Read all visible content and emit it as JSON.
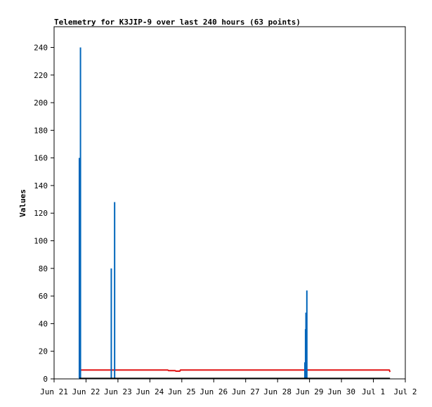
{
  "chart_data": {
    "type": "line",
    "title": "Telemetry for K3JIP-9 over last 240 hours (63 points)",
    "xlabel": "",
    "ylabel": "Values",
    "ylim": [
      0,
      255
    ],
    "xlim": [
      "2021-06-21",
      "2021-07-02"
    ],
    "y_ticks": [
      0,
      20,
      40,
      60,
      80,
      100,
      120,
      140,
      160,
      180,
      200,
      220,
      240
    ],
    "x_ticks": [
      {
        "date": "2021-06-21",
        "label": "Jun 21"
      },
      {
        "date": "2021-06-22",
        "label": "Jun 22"
      },
      {
        "date": "2021-06-23",
        "label": "Jun 23"
      },
      {
        "date": "2021-06-24",
        "label": "Jun 24"
      },
      {
        "date": "2021-06-25",
        "label": "Jun 25"
      },
      {
        "date": "2021-06-26",
        "label": "Jun 26"
      },
      {
        "date": "2021-06-27",
        "label": "Jun 27"
      },
      {
        "date": "2021-06-28",
        "label": "Jun 28"
      },
      {
        "date": "2021-06-29",
        "label": "Jun 29"
      },
      {
        "date": "2021-06-30",
        "label": "Jun 30"
      },
      {
        "date": "2021-07-01",
        "label": "Jul 1"
      },
      {
        "date": "2021-07-02",
        "label": "Jul 2"
      }
    ],
    "grid": false,
    "series": [
      {
        "color": "#e01010",
        "style": "line",
        "points": [
          [
            "2021-06-21 19:00",
            6.4
          ],
          [
            "2021-06-22 12:00",
            6.4
          ],
          [
            "2021-06-23 12:00",
            6.4
          ],
          [
            "2021-06-24 13:30",
            6.4
          ],
          [
            "2021-06-24 14:00",
            6.0
          ],
          [
            "2021-06-24 19:00",
            6.0
          ],
          [
            "2021-06-24 19:30",
            5.6
          ],
          [
            "2021-06-24 22:30",
            5.6
          ],
          [
            "2021-06-24 23:00",
            6.4
          ],
          [
            "2021-06-26 00:00",
            6.4
          ],
          [
            "2021-06-28 00:00",
            6.4
          ],
          [
            "2021-06-30 00:00",
            6.4
          ],
          [
            "2021-07-01 12:00",
            6.4
          ],
          [
            "2021-07-01 12:30",
            5.0
          ]
        ]
      },
      {
        "color": "#0066bb",
        "style": "spikes",
        "points": [
          [
            "2021-06-21 19:00",
            160
          ],
          [
            "2021-06-21 19:50",
            240
          ],
          [
            "2021-06-22 19:00",
            80
          ],
          [
            "2021-06-22 21:30",
            128
          ],
          [
            "2021-06-28 20:30",
            12
          ],
          [
            "2021-06-28 21:00",
            36
          ],
          [
            "2021-06-28 21:20",
            48
          ],
          [
            "2021-06-28 22:00",
            64
          ]
        ]
      },
      {
        "color": "#000000",
        "style": "line",
        "points": [
          [
            "2021-06-21 19:00",
            0.3
          ],
          [
            "2021-07-01 12:30",
            0.3
          ]
        ]
      }
    ]
  }
}
